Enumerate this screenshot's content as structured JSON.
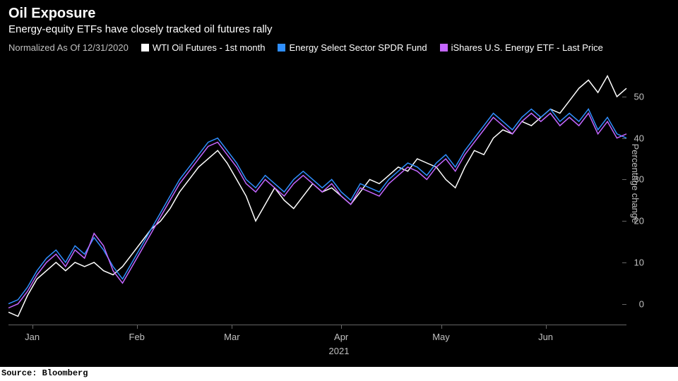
{
  "title": "Oil Exposure",
  "subtitle": "Energy-equity ETFs have closely tracked oil futures rally",
  "normalized_label": "Normalized As Of 12/31/2020",
  "source": "Source: Bloomberg",
  "legend": [
    {
      "label": "WTI Oil Futures - 1st month",
      "color": "#ffffff"
    },
    {
      "label": "Energy Select Sector SPDR Fund",
      "color": "#2f8fff"
    },
    {
      "label": "iShares U.S. Energy ETF - Last Price",
      "color": "#c466ff"
    }
  ],
  "chart": {
    "type": "line",
    "background_color": "#000000",
    "grid_color": "#666666",
    "text_color": "#c0c0c0",
    "title_fontsize": 20,
    "subtitle_fontsize": 15,
    "label_fontsize": 13,
    "legend_fontsize": 13,
    "line_width": 1.5,
    "ylabel": "Percentage change",
    "ylim": [
      -5,
      58
    ],
    "yticks": [
      0,
      10,
      20,
      30,
      40,
      50
    ],
    "x_domain": [
      0,
      130
    ],
    "xticks": [
      {
        "pos": 5,
        "label": "Jan"
      },
      {
        "pos": 27,
        "label": "Feb"
      },
      {
        "pos": 47,
        "label": "Mar"
      },
      {
        "pos": 70,
        "label": "Apr"
      },
      {
        "pos": 91,
        "label": "May"
      },
      {
        "pos": 113,
        "label": "Jun"
      }
    ],
    "xlabel_year": "2021",
    "series": [
      {
        "name": "WTI Oil Futures - 1st month",
        "data_name": "series-wti",
        "color": "#ffffff",
        "points": [
          [
            0,
            -2
          ],
          [
            2,
            -3
          ],
          [
            4,
            2
          ],
          [
            6,
            6
          ],
          [
            8,
            8
          ],
          [
            10,
            10
          ],
          [
            12,
            8
          ],
          [
            14,
            10
          ],
          [
            16,
            9
          ],
          [
            18,
            10
          ],
          [
            20,
            8
          ],
          [
            22,
            7
          ],
          [
            24,
            9
          ],
          [
            26,
            12
          ],
          [
            28,
            15
          ],
          [
            30,
            18
          ],
          [
            32,
            20
          ],
          [
            34,
            23
          ],
          [
            36,
            27
          ],
          [
            38,
            30
          ],
          [
            40,
            33
          ],
          [
            42,
            35
          ],
          [
            44,
            37
          ],
          [
            46,
            34
          ],
          [
            48,
            30
          ],
          [
            50,
            26
          ],
          [
            52,
            20
          ],
          [
            54,
            24
          ],
          [
            56,
            28
          ],
          [
            58,
            25
          ],
          [
            60,
            23
          ],
          [
            62,
            26
          ],
          [
            64,
            29
          ],
          [
            66,
            27
          ],
          [
            68,
            28
          ],
          [
            70,
            26
          ],
          [
            72,
            24
          ],
          [
            74,
            27
          ],
          [
            76,
            30
          ],
          [
            78,
            29
          ],
          [
            80,
            31
          ],
          [
            82,
            33
          ],
          [
            84,
            32
          ],
          [
            86,
            35
          ],
          [
            88,
            34
          ],
          [
            90,
            33
          ],
          [
            92,
            30
          ],
          [
            94,
            28
          ],
          [
            96,
            33
          ],
          [
            98,
            37
          ],
          [
            100,
            36
          ],
          [
            102,
            40
          ],
          [
            104,
            42
          ],
          [
            106,
            41
          ],
          [
            108,
            44
          ],
          [
            110,
            43
          ],
          [
            112,
            45
          ],
          [
            114,
            47
          ],
          [
            116,
            46
          ],
          [
            118,
            49
          ],
          [
            120,
            52
          ],
          [
            122,
            54
          ],
          [
            124,
            51
          ],
          [
            126,
            55
          ],
          [
            128,
            50
          ],
          [
            130,
            52
          ]
        ]
      },
      {
        "name": "Energy Select Sector SPDR Fund",
        "data_name": "series-xle",
        "color": "#2f8fff",
        "points": [
          [
            0,
            0
          ],
          [
            2,
            1
          ],
          [
            4,
            4
          ],
          [
            6,
            8
          ],
          [
            8,
            11
          ],
          [
            10,
            13
          ],
          [
            12,
            10
          ],
          [
            14,
            14
          ],
          [
            16,
            12
          ],
          [
            18,
            16
          ],
          [
            20,
            13
          ],
          [
            22,
            9
          ],
          [
            24,
            6
          ],
          [
            26,
            10
          ],
          [
            28,
            14
          ],
          [
            30,
            18
          ],
          [
            32,
            22
          ],
          [
            34,
            26
          ],
          [
            36,
            30
          ],
          [
            38,
            33
          ],
          [
            40,
            36
          ],
          [
            42,
            39
          ],
          [
            44,
            40
          ],
          [
            46,
            37
          ],
          [
            48,
            34
          ],
          [
            50,
            30
          ],
          [
            52,
            28
          ],
          [
            54,
            31
          ],
          [
            56,
            29
          ],
          [
            58,
            27
          ],
          [
            60,
            30
          ],
          [
            62,
            32
          ],
          [
            64,
            30
          ],
          [
            66,
            28
          ],
          [
            68,
            30
          ],
          [
            70,
            27
          ],
          [
            72,
            25
          ],
          [
            74,
            29
          ],
          [
            76,
            28
          ],
          [
            78,
            27
          ],
          [
            80,
            30
          ],
          [
            82,
            32
          ],
          [
            84,
            34
          ],
          [
            86,
            33
          ],
          [
            88,
            31
          ],
          [
            90,
            34
          ],
          [
            92,
            36
          ],
          [
            94,
            33
          ],
          [
            96,
            37
          ],
          [
            98,
            40
          ],
          [
            100,
            43
          ],
          [
            102,
            46
          ],
          [
            104,
            44
          ],
          [
            106,
            42
          ],
          [
            108,
            45
          ],
          [
            110,
            47
          ],
          [
            112,
            45
          ],
          [
            114,
            47
          ],
          [
            116,
            44
          ],
          [
            118,
            46
          ],
          [
            120,
            44
          ],
          [
            122,
            47
          ],
          [
            124,
            42
          ],
          [
            126,
            45
          ],
          [
            128,
            41
          ],
          [
            130,
            40
          ]
        ]
      },
      {
        "name": "iShares U.S. Energy ETF - Last Price",
        "data_name": "series-iye",
        "color": "#c466ff",
        "points": [
          [
            0,
            -1
          ],
          [
            2,
            0
          ],
          [
            4,
            3
          ],
          [
            6,
            7
          ],
          [
            8,
            10
          ],
          [
            10,
            12
          ],
          [
            12,
            9
          ],
          [
            14,
            13
          ],
          [
            16,
            11
          ],
          [
            18,
            17
          ],
          [
            20,
            14
          ],
          [
            22,
            8
          ],
          [
            24,
            5
          ],
          [
            26,
            9
          ],
          [
            28,
            13
          ],
          [
            30,
            17
          ],
          [
            32,
            21
          ],
          [
            34,
            25
          ],
          [
            36,
            29
          ],
          [
            38,
            32
          ],
          [
            40,
            35
          ],
          [
            42,
            38
          ],
          [
            44,
            39
          ],
          [
            46,
            36
          ],
          [
            48,
            33
          ],
          [
            50,
            29
          ],
          [
            52,
            27
          ],
          [
            54,
            30
          ],
          [
            56,
            28
          ],
          [
            58,
            26
          ],
          [
            60,
            29
          ],
          [
            62,
            31
          ],
          [
            64,
            29
          ],
          [
            66,
            27
          ],
          [
            68,
            29
          ],
          [
            70,
            26
          ],
          [
            72,
            24
          ],
          [
            74,
            28
          ],
          [
            76,
            27
          ],
          [
            78,
            26
          ],
          [
            80,
            29
          ],
          [
            82,
            31
          ],
          [
            84,
            33
          ],
          [
            86,
            32
          ],
          [
            88,
            30
          ],
          [
            90,
            33
          ],
          [
            92,
            35
          ],
          [
            94,
            32
          ],
          [
            96,
            36
          ],
          [
            98,
            39
          ],
          [
            100,
            42
          ],
          [
            102,
            45
          ],
          [
            104,
            43
          ],
          [
            106,
            41
          ],
          [
            108,
            44
          ],
          [
            110,
            46
          ],
          [
            112,
            44
          ],
          [
            114,
            46
          ],
          [
            116,
            43
          ],
          [
            118,
            45
          ],
          [
            120,
            43
          ],
          [
            122,
            46
          ],
          [
            124,
            41
          ],
          [
            126,
            44
          ],
          [
            128,
            40
          ],
          [
            130,
            41
          ]
        ]
      }
    ]
  }
}
